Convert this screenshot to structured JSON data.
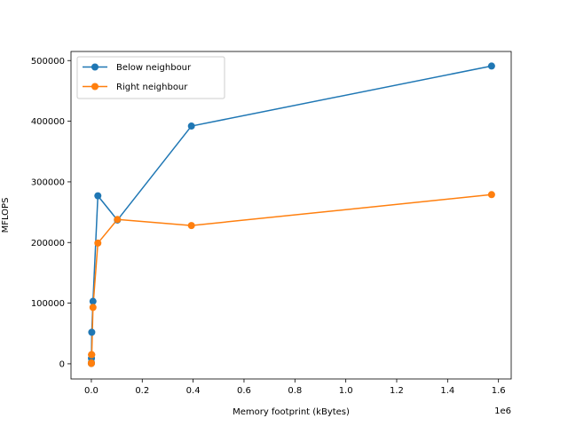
{
  "chart_data": {
    "type": "line",
    "title": "",
    "xlabel": "Memory footprint (kBytes)",
    "ylabel": "MFLOPS",
    "x_offset_text": "1e6",
    "xlim": [
      -80000,
      1650000
    ],
    "ylim": [
      -25000,
      515000
    ],
    "x_ticks": [
      0,
      200000,
      400000,
      600000,
      800000,
      1000000,
      1200000,
      1400000,
      1600000
    ],
    "x_tick_labels": [
      "0.0",
      "0.2",
      "0.4",
      "0.6",
      "0.8",
      "1.0",
      "1.2",
      "1.4",
      "1.6"
    ],
    "y_ticks": [
      0,
      100000,
      200000,
      300000,
      400000,
      500000
    ],
    "y_tick_labels": [
      "0",
      "100000",
      "200000",
      "300000",
      "400000",
      "500000"
    ],
    "grid": false,
    "legend_position": "upper-left",
    "series": [
      {
        "name": "Below neighbour",
        "color": "#1f77b4",
        "x": [
          0,
          100,
          400,
          1600,
          6400,
          25600,
          102400,
          393216,
          1572864
        ],
        "y": [
          500,
          2000,
          9000,
          52000,
          103000,
          277000,
          237000,
          392000,
          491000
        ]
      },
      {
        "name": "Right neighbour",
        "color": "#ff7f0e",
        "x": [
          0,
          100,
          400,
          1600,
          6400,
          25600,
          102400,
          393216,
          1572864
        ],
        "y": [
          500,
          1500,
          15000,
          15000,
          93000,
          199000,
          238000,
          228000,
          279000
        ]
      }
    ]
  }
}
